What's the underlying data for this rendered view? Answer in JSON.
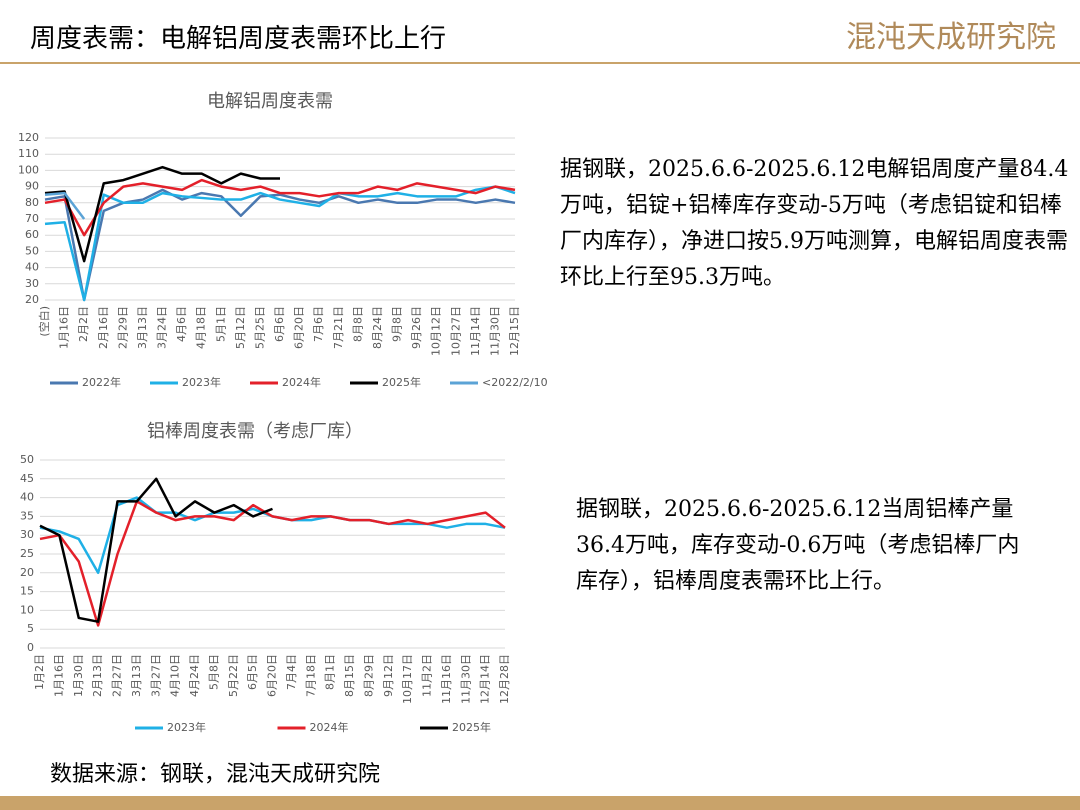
{
  "title": "周度表需：电解铝周度表需环比上行",
  "logo": "混沌天成研究院",
  "texts": [
    "据钢联，2025.6.6-2025.6.12电解铝周度产量84.4万吨，铝锭+铝棒库存变动-5万吨（考虑铝锭和铝棒厂内库存），净进口按5.9万吨测算，电解铝周度表需环比上行至95.3万吨。",
    "据钢联，2025.6.6-2025.6.12当周铝棒产量36.4万吨，库存变动-0.6万吨（考虑铝棒厂内库存），铝棒周度表需环比上行。"
  ],
  "source": "数据来源：钢联，混沌天成研究院",
  "chart_data": [
    {
      "type": "line",
      "title": "电解铝周度表需",
      "categories": [
        "(空白)",
        "1月16日",
        "2月2日",
        "2月16日",
        "2月29日",
        "3月13日",
        "3月24日",
        "4月6日",
        "4月18日",
        "5月1日",
        "5月12日",
        "5月25日",
        "6月6日",
        "6月20日",
        "7月6日",
        "7月21日",
        "8月8日",
        "8月24日",
        "9月8日",
        "9月26日",
        "10月12日",
        "10月27日",
        "11月14日",
        "11月30日",
        "12月15日"
      ],
      "ylim": [
        20,
        120
      ],
      "yticks": [
        20,
        30,
        40,
        50,
        60,
        70,
        80,
        90,
        100,
        110,
        120
      ],
      "grid": true,
      "series": [
        {
          "name": "2022年",
          "color": "#4a78b0",
          "values": [
            82,
            84,
            20,
            75,
            80,
            82,
            88,
            82,
            86,
            84,
            72,
            84,
            85,
            82,
            80,
            84,
            80,
            82,
            80,
            80,
            82,
            82,
            80,
            82,
            80
          ]
        },
        {
          "name": "2023年",
          "color": "#1fb0e6",
          "values": [
            67,
            68,
            20,
            85,
            80,
            80,
            86,
            84,
            83,
            82,
            82,
            86,
            82,
            80,
            78,
            86,
            84,
            84,
            86,
            84,
            84,
            84,
            88,
            90,
            86
          ]
        },
        {
          "name": "2024年",
          "color": "#e3202a",
          "values": [
            80,
            82,
            60,
            80,
            90,
            92,
            90,
            88,
            94,
            90,
            88,
            90,
            86,
            86,
            84,
            86,
            86,
            90,
            88,
            92,
            90,
            88,
            86,
            90,
            88
          ]
        },
        {
          "name": "2025年",
          "color": "#000000",
          "values": [
            86,
            87,
            44,
            92,
            94,
            98,
            102,
            98,
            98,
            92,
            98,
            95,
            95,
            null,
            null,
            null,
            null,
            null,
            null,
            null,
            null,
            null,
            null,
            null,
            null
          ]
        },
        {
          "name": "<2022/2/10",
          "color": "#5ba3d6",
          "values": [
            85,
            86,
            70,
            null,
            null,
            null,
            null,
            null,
            null,
            null,
            null,
            null,
            null,
            null,
            null,
            null,
            null,
            null,
            null,
            null,
            null,
            null,
            null,
            null,
            null
          ]
        }
      ]
    },
    {
      "type": "line",
      "title": "铝棒周度表需（考虑厂库）",
      "categories": [
        "1月2日",
        "1月16日",
        "1月30日",
        "2月13日",
        "2月27日",
        "3月13日",
        "3月27日",
        "4月10日",
        "4月24日",
        "5月8日",
        "5月22日",
        "6月5日",
        "6月20日",
        "7月4日",
        "7月18日",
        "8月1日",
        "8月15日",
        "8月29日",
        "9月12日",
        "10月17日",
        "11月2日",
        "11月16日",
        "11月30日",
        "12月14日",
        "12月28日"
      ],
      "ylim": [
        0,
        50
      ],
      "yticks": [
        0,
        5,
        10,
        15,
        20,
        25,
        30,
        35,
        40,
        45,
        50
      ],
      "grid": true,
      "series": [
        {
          "name": "2023年",
          "color": "#1fb0e6",
          "values": [
            32,
            31,
            29,
            20,
            38,
            40,
            36,
            36,
            34,
            36,
            36,
            37,
            35,
            34,
            34,
            35,
            34,
            34,
            33,
            33,
            33,
            32,
            33,
            33,
            32
          ]
        },
        {
          "name": "2024年",
          "color": "#e3202a",
          "values": [
            29,
            30,
            23,
            6,
            25,
            39,
            36,
            34,
            35,
            35,
            34,
            38,
            35,
            34,
            35,
            35,
            34,
            34,
            33,
            34,
            33,
            34,
            35,
            36,
            32
          ]
        },
        {
          "name": "2025年",
          "color": "#000000",
          "values": [
            32.5,
            30,
            8,
            7,
            39,
            39,
            45,
            35,
            39,
            36,
            38,
            35,
            37,
            null,
            null,
            null,
            null,
            null,
            null,
            null,
            null,
            null,
            null,
            null,
            null
          ]
        }
      ]
    }
  ]
}
